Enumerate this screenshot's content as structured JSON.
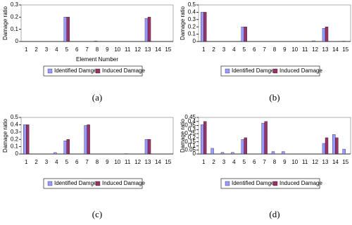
{
  "chart_data": [
    {
      "type": "bar",
      "caption": "(a)",
      "ylabel": "Damage ratio",
      "xlabel": "Element Number",
      "categories": [
        "1",
        "2",
        "3",
        "4",
        "5",
        "6",
        "7",
        "8",
        "9",
        "10",
        "11",
        "12",
        "13",
        "14",
        "15"
      ],
      "ylim": [
        0,
        0.3
      ],
      "yticks": [
        0,
        0.1,
        0.2,
        0.3
      ],
      "series": [
        {
          "name": "Identified Damge",
          "color": "#9999ff",
          "values": [
            0,
            0,
            0,
            0,
            0.2,
            0,
            0,
            0.005,
            0,
            0,
            0,
            0,
            0.19,
            0,
            0
          ]
        },
        {
          "name": "Induced Damage",
          "color": "#993366",
          "values": [
            0,
            0,
            0,
            0,
            0.2,
            0,
            0,
            0,
            0,
            0,
            0,
            0,
            0.2,
            0,
            0
          ]
        }
      ]
    },
    {
      "type": "bar",
      "caption": "(b)",
      "ylabel": "Damage ratio",
      "categories": [
        "1",
        "2",
        "3",
        "4",
        "5",
        "6",
        "7",
        "8",
        "9",
        "10",
        "11",
        "12",
        "13",
        "14",
        "15"
      ],
      "ylim": [
        0,
        0.5
      ],
      "yticks": [
        0,
        0.1,
        0.2,
        0.3,
        0.4,
        0.5
      ],
      "series": [
        {
          "name": "Identified Damge",
          "color": "#9999ff",
          "values": [
            0.4,
            0,
            0,
            0,
            0.2,
            0,
            0,
            0,
            0,
            0,
            0,
            0.01,
            0.18,
            0,
            0.005
          ]
        },
        {
          "name": "Induced Damage",
          "color": "#993366",
          "values": [
            0.4,
            0,
            0,
            0,
            0.2,
            0,
            0,
            0,
            0,
            0,
            0,
            0,
            0.2,
            0,
            0
          ]
        }
      ]
    },
    {
      "type": "bar",
      "caption": "(c)",
      "ylabel": "Damage ratio",
      "categories": [
        "1",
        "2",
        "3",
        "4",
        "5",
        "6",
        "7",
        "8",
        "9",
        "10",
        "11",
        "12",
        "13",
        "14",
        "15"
      ],
      "ylim": [
        0,
        0.5
      ],
      "yticks": [
        0,
        0.1,
        0.2,
        0.3,
        0.4,
        0.5
      ],
      "series": [
        {
          "name": "Identified Damge",
          "color": "#9999ff",
          "values": [
            0.4,
            0,
            0,
            0.02,
            0.18,
            0,
            0.39,
            0,
            0,
            0,
            0.005,
            0,
            0.2,
            0,
            0
          ]
        },
        {
          "name": "Induced Damage",
          "color": "#993366",
          "values": [
            0.4,
            0,
            0,
            0,
            0.2,
            0,
            0.4,
            0,
            0,
            0,
            0,
            0,
            0.2,
            0,
            0
          ]
        }
      ]
    },
    {
      "type": "bar",
      "caption": "(d)",
      "ylabel": "Damage ratio",
      "categories": [
        "1",
        "2",
        "3",
        "4",
        "5",
        "6",
        "7",
        "8",
        "9",
        "10",
        "11",
        "12",
        "13",
        "14",
        "15"
      ],
      "ylim": [
        0,
        0.45
      ],
      "yticks": [
        0,
        0.05,
        0.1,
        0.15,
        0.2,
        0.25,
        0.3,
        0.35,
        0.4,
        0.45
      ],
      "series": [
        {
          "name": "Identified Damge",
          "color": "#9999ff",
          "values": [
            0.36,
            0.07,
            0.02,
            0.02,
            0.18,
            0,
            0.38,
            0.03,
            0.03,
            0,
            0,
            0,
            0.13,
            0.24,
            0.06
          ]
        },
        {
          "name": "Induced Damage",
          "color": "#993366",
          "values": [
            0.4,
            0,
            0,
            0,
            0.2,
            0,
            0.4,
            0,
            0,
            0,
            0,
            0,
            0.2,
            0.2,
            0
          ]
        }
      ]
    }
  ]
}
